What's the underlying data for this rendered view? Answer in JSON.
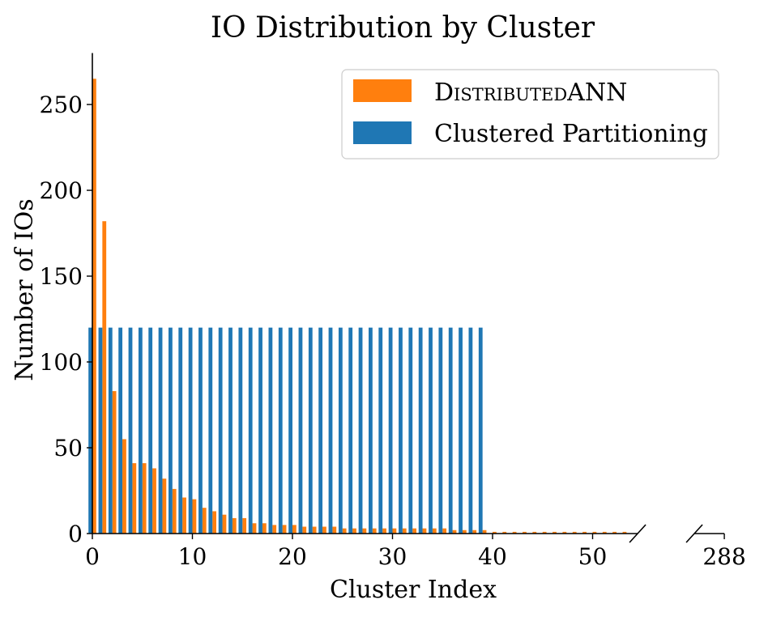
{
  "chart_data": {
    "type": "bar",
    "title": "IO Distribution by Cluster",
    "xlabel": "Cluster Index",
    "ylabel": "Number of IOs",
    "ylim": [
      0,
      280
    ],
    "xlim": [
      0,
      54.5
    ],
    "x_break": true,
    "x_break_tick": 288,
    "x_ticks": [
      0,
      10,
      20,
      30,
      40,
      50
    ],
    "y_ticks": [
      0,
      50,
      100,
      150,
      200,
      250
    ],
    "legend": {
      "position": "top-right"
    },
    "series": [
      {
        "name": "DistributedANN",
        "color": "#ff7f0e",
        "x": [
          0,
          1,
          2,
          3,
          4,
          5,
          6,
          7,
          8,
          9,
          10,
          11,
          12,
          13,
          14,
          15,
          16,
          17,
          18,
          19,
          20,
          21,
          22,
          23,
          24,
          25,
          26,
          27,
          28,
          29,
          30,
          31,
          32,
          33,
          34,
          35,
          36,
          37,
          38,
          39,
          40,
          41,
          42,
          43,
          44,
          45,
          46,
          47,
          48,
          49,
          50,
          51,
          52,
          53
        ],
        "values": [
          265,
          182,
          83,
          55,
          41,
          41,
          38,
          32,
          26,
          21,
          20,
          15,
          13,
          11,
          9,
          9,
          6,
          6,
          5,
          5,
          5,
          4,
          4,
          4,
          4,
          3,
          3,
          3,
          3,
          3,
          3,
          3,
          3,
          3,
          3,
          3,
          2,
          2,
          2,
          2,
          1,
          1,
          1,
          1,
          1,
          1,
          1,
          1,
          1,
          1,
          1,
          1,
          1,
          1
        ]
      },
      {
        "name": "Clustered Partitioning",
        "color": "#1f77b4",
        "x": [
          0,
          1,
          2,
          3,
          4,
          5,
          6,
          7,
          8,
          9,
          10,
          11,
          12,
          13,
          14,
          15,
          16,
          17,
          18,
          19,
          20,
          21,
          22,
          23,
          24,
          25,
          26,
          27,
          28,
          29,
          30,
          31,
          32,
          33,
          34,
          35,
          36,
          37,
          38,
          39
        ],
        "values": [
          120,
          120,
          120,
          120,
          120,
          120,
          120,
          120,
          120,
          120,
          120,
          120,
          120,
          120,
          120,
          120,
          120,
          120,
          120,
          120,
          120,
          120,
          120,
          120,
          120,
          120,
          120,
          120,
          120,
          120,
          120,
          120,
          120,
          120,
          120,
          120,
          120,
          120,
          120,
          120
        ]
      }
    ]
  }
}
